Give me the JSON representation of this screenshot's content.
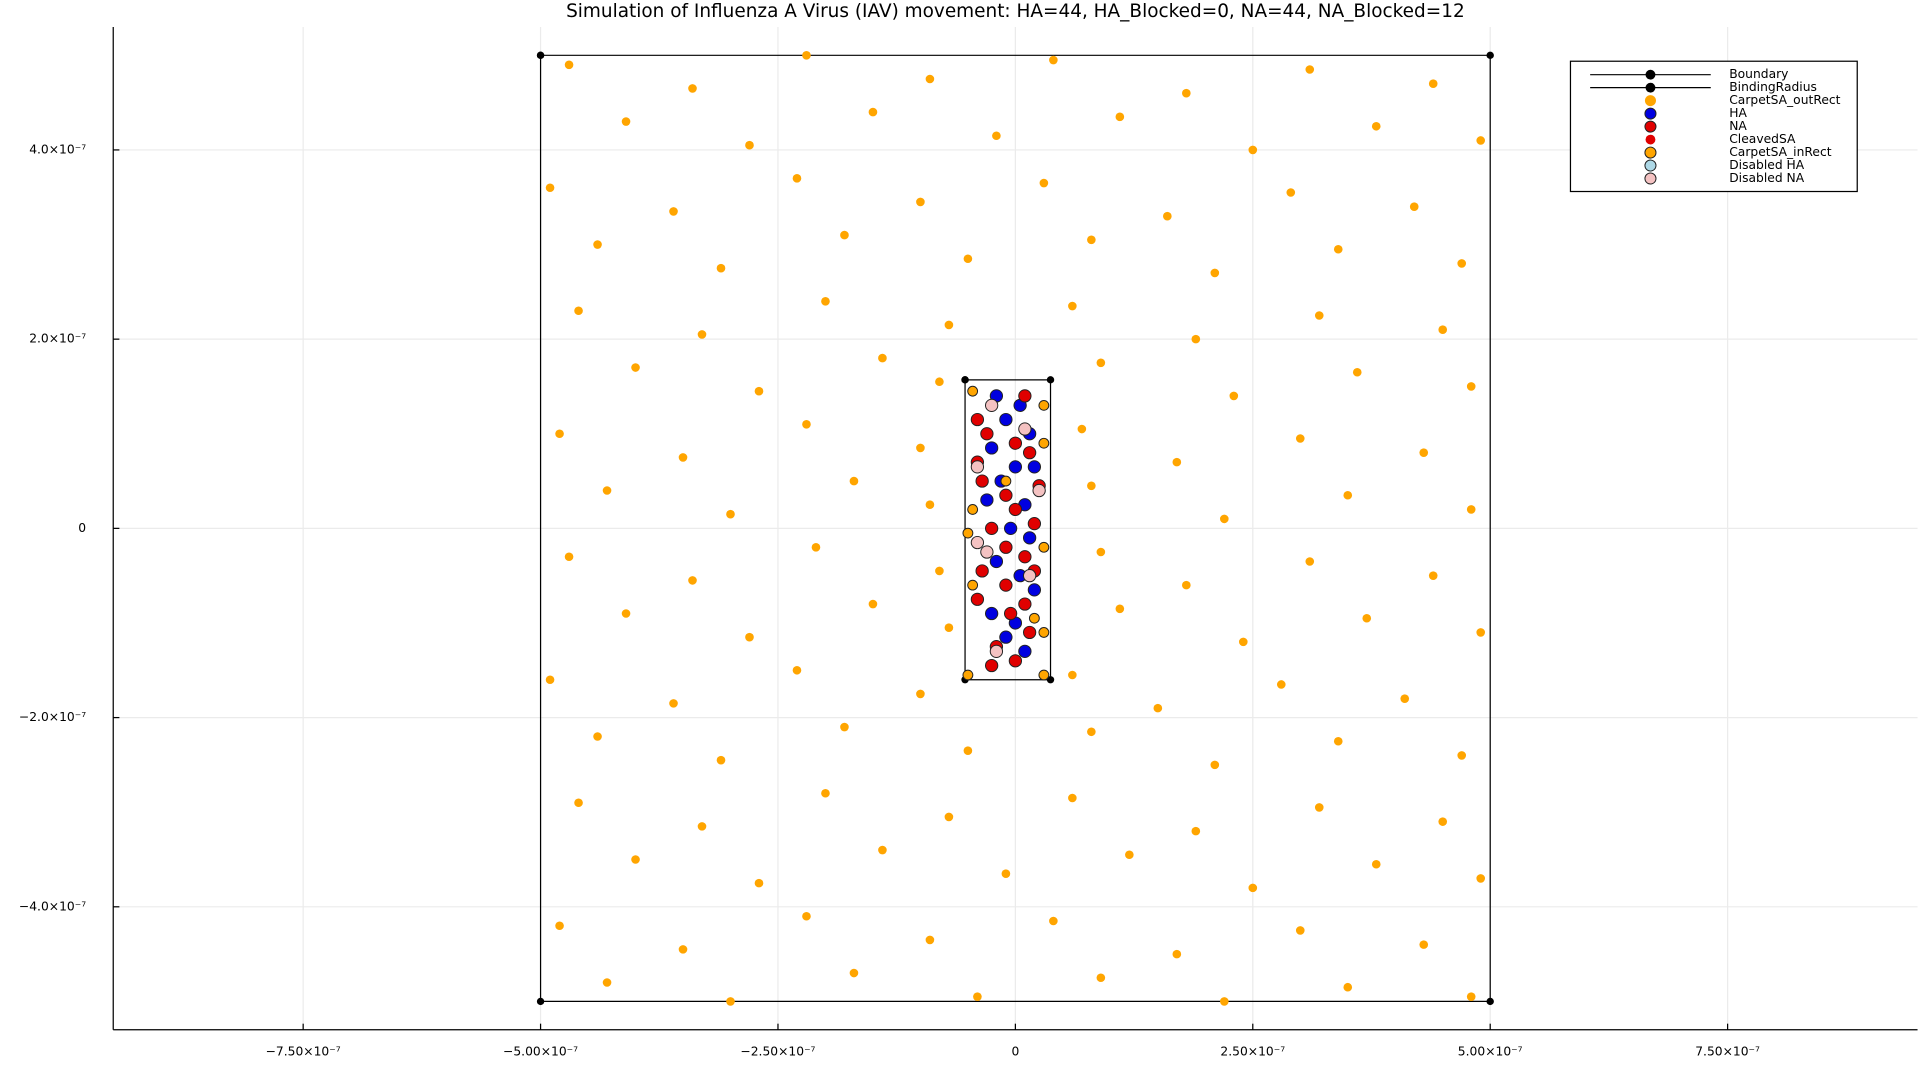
{
  "chart_data": {
    "type": "scatter",
    "title": "Simulation of Influenza A Virus (IAV) movement: HA=44, HA_Blocked=0, NA=44, NA_Blocked=12",
    "xlim": [
      -9.5e-07,
      9.5e-07
    ],
    "ylim": [
      -5.3e-07,
      5.3e-07
    ],
    "xticks": [
      {
        "value": -7.5e-07,
        "label": "−7.50×10⁻⁷"
      },
      {
        "value": -5e-07,
        "label": "−5.00×10⁻⁷"
      },
      {
        "value": -2.5e-07,
        "label": "−2.50×10⁻⁷"
      },
      0,
      {
        "value": 2.5e-07,
        "label": "2.50×10⁻⁷"
      },
      {
        "value": 5e-07,
        "label": "5.00×10⁻⁷"
      },
      {
        "value": 7.5e-07,
        "label": "7.50×10⁻⁷"
      }
    ],
    "yticks": [
      {
        "value": -4e-07,
        "label": "−4.0×10⁻⁷"
      },
      {
        "value": -2e-07,
        "label": "−2.0×10⁻⁷"
      },
      0,
      {
        "value": 2e-07,
        "label": "2.0×10⁻⁷"
      },
      {
        "value": 4e-07,
        "label": "4.0×10⁻⁷"
      }
    ],
    "grid": true,
    "legend": "top-right",
    "series": [
      {
        "name": "Boundary",
        "color": "#000000",
        "mode": "lines+markers",
        "x": [
          -5e-07,
          5e-07,
          5e-07,
          -5e-07,
          -5e-07
        ],
        "y": [
          5e-07,
          5e-07,
          -5e-07,
          -5e-07,
          5e-07
        ]
      },
      {
        "name": "BindingRadius",
        "color": "#000000",
        "mode": "lines+markers",
        "x": [
          -5.3e-08,
          3.7e-08,
          3.7e-08,
          -5.3e-08,
          -5.3e-08
        ],
        "y": [
          1.57e-07,
          1.57e-07,
          -1.6e-07,
          -1.6e-07,
          1.57e-07
        ]
      },
      {
        "name": "CarpetSA_outRect",
        "color": "#ffa500",
        "mode": "markers",
        "x": [
          -4.7e-07,
          -3.4e-07,
          -2.2e-07,
          -9e-08,
          4e-08,
          1.8e-07,
          3.1e-07,
          4.4e-07,
          -4.1e-07,
          -2.8e-07,
          -1.5e-07,
          -2e-08,
          1.1e-07,
          2.5e-07,
          3.8e-07,
          4.9e-07,
          -4.9e-07,
          -3.6e-07,
          -2.3e-07,
          -1e-07,
          3e-08,
          1.6e-07,
          2.9e-07,
          4.2e-07,
          -4.4e-07,
          -3.1e-07,
          -1.8e-07,
          -5e-08,
          8e-08,
          2.1e-07,
          3.4e-07,
          4.7e-07,
          -4.6e-07,
          -3.3e-07,
          -2e-07,
          -7e-08,
          6e-08,
          1.9e-07,
          3.2e-07,
          4.5e-07,
          -4e-07,
          -2.7e-07,
          -1.4e-07,
          -8e-08,
          9e-08,
          2.3e-07,
          3.6e-07,
          4.8e-07,
          -4.8e-07,
          -3.5e-07,
          -2.2e-07,
          -1e-07,
          7e-08,
          1.7e-07,
          3e-07,
          4.3e-07,
          -4.3e-07,
          -3e-07,
          -1.7e-07,
          -9e-08,
          8e-08,
          2.2e-07,
          3.5e-07,
          4.8e-07,
          -4.7e-07,
          -3.4e-07,
          -2.1e-07,
          -8e-08,
          9e-08,
          1.8e-07,
          3.1e-07,
          4.4e-07,
          -4.1e-07,
          -2.8e-07,
          -1.5e-07,
          -7e-08,
          1.1e-07,
          2.4e-07,
          3.7e-07,
          4.9e-07,
          -4.9e-07,
          -3.6e-07,
          -2.3e-07,
          -1e-07,
          6e-08,
          1.5e-07,
          2.8e-07,
          4.1e-07,
          -4.4e-07,
          -3.1e-07,
          -1.8e-07,
          -5e-08,
          8e-08,
          2.1e-07,
          3.4e-07,
          4.7e-07,
          -4.6e-07,
          -3.3e-07,
          -2e-07,
          -7e-08,
          6e-08,
          1.9e-07,
          3.2e-07,
          4.5e-07,
          -4e-07,
          -2.7e-07,
          -1.4e-07,
          -1e-08,
          1.2e-07,
          2.5e-07,
          3.8e-07,
          4.9e-07,
          -4.8e-07,
          -3.5e-07,
          -2.2e-07,
          -9e-08,
          4e-08,
          1.7e-07,
          3e-07,
          4.3e-07,
          -4.3e-07,
          -3e-07,
          -1.7e-07,
          -4e-08,
          9e-08,
          2.2e-07,
          3.5e-07,
          4.8e-07
        ],
        "y": [
          4.9e-07,
          4.65e-07,
          5e-07,
          4.75e-07,
          4.95e-07,
          4.6e-07,
          4.85e-07,
          4.7e-07,
          4.3e-07,
          4.05e-07,
          4.4e-07,
          4.15e-07,
          4.35e-07,
          4e-07,
          4.25e-07,
          4.1e-07,
          3.6e-07,
          3.35e-07,
          3.7e-07,
          3.45e-07,
          3.65e-07,
          3.3e-07,
          3.55e-07,
          3.4e-07,
          3e-07,
          2.75e-07,
          3.1e-07,
          2.85e-07,
          3.05e-07,
          2.7e-07,
          2.95e-07,
          2.8e-07,
          2.3e-07,
          2.05e-07,
          2.4e-07,
          2.15e-07,
          2.35e-07,
          2e-07,
          2.25e-07,
          2.1e-07,
          1.7e-07,
          1.45e-07,
          1.8e-07,
          1.55e-07,
          1.75e-07,
          1.4e-07,
          1.65e-07,
          1.5e-07,
          1e-07,
          7.5e-08,
          1.1e-07,
          8.5e-08,
          1.05e-07,
          7e-08,
          9.5e-08,
          8e-08,
          4e-08,
          1.5e-08,
          5e-08,
          2.5e-08,
          4.5e-08,
          1e-08,
          3.5e-08,
          2e-08,
          -3e-08,
          -5.5e-08,
          -2e-08,
          -4.5e-08,
          -2.5e-08,
          -6e-08,
          -3.5e-08,
          -5e-08,
          -9e-08,
          -1.15e-07,
          -8e-08,
          -1.05e-07,
          -8.5e-08,
          -1.2e-07,
          -9.5e-08,
          -1.1e-07,
          -1.6e-07,
          -1.85e-07,
          -1.5e-07,
          -1.75e-07,
          -1.55e-07,
          -1.9e-07,
          -1.65e-07,
          -1.8e-07,
          -2.2e-07,
          -2.45e-07,
          -2.1e-07,
          -2.35e-07,
          -2.15e-07,
          -2.5e-07,
          -2.25e-07,
          -2.4e-07,
          -2.9e-07,
          -3.15e-07,
          -2.8e-07,
          -3.05e-07,
          -2.85e-07,
          -3.2e-07,
          -2.95e-07,
          -3.1e-07,
          -3.5e-07,
          -3.75e-07,
          -3.4e-07,
          -3.65e-07,
          -3.45e-07,
          -3.8e-07,
          -3.55e-07,
          -3.7e-07,
          -4.2e-07,
          -4.45e-07,
          -4.1e-07,
          -4.35e-07,
          -4.15e-07,
          -4.5e-07,
          -4.25e-07,
          -4.4e-07,
          -4.8e-07,
          -5e-07,
          -4.7e-07,
          -4.95e-07,
          -4.75e-07,
          -5e-07,
          -4.85e-07,
          -4.95e-07
        ]
      },
      {
        "name": "HA",
        "color": "#0000e0",
        "mode": "markers",
        "x": [
          -2e-08,
          5e-09,
          -1e-08,
          1.5e-08,
          -2.5e-08,
          0,
          2e-08,
          -1.5e-08,
          -3e-08,
          1e-08,
          -5e-09,
          1.5e-08,
          -2e-08,
          5e-09,
          2e-08,
          -2.5e-08,
          0,
          -1e-08,
          1e-08
        ],
        "y": [
          1.4e-07,
          1.3e-07,
          1.15e-07,
          1e-07,
          8.5e-08,
          6.5e-08,
          6.5e-08,
          5e-08,
          3e-08,
          2.5e-08,
          0,
          -1e-08,
          -3.5e-08,
          -5e-08,
          -6.5e-08,
          -9e-08,
          -1e-07,
          -1.15e-07,
          -1.3e-07
        ]
      },
      {
        "name": "NA",
        "color": "#e00000",
        "mode": "markers",
        "x": [
          -4e-08,
          1e-08,
          -3e-08,
          0,
          -4e-08,
          1.5e-08,
          -1e-08,
          2.5e-08,
          -3.5e-08,
          0,
          -2.5e-08,
          2e-08,
          -1e-08,
          1e-08,
          -3.5e-08,
          -1e-08,
          1e-08,
          -4e-08,
          -2e-08,
          1.5e-08,
          -2.5e-08,
          0,
          2e-08,
          -5e-09
        ],
        "y": [
          1.15e-07,
          1.4e-07,
          1e-07,
          9e-08,
          7e-08,
          8e-08,
          3.5e-08,
          4.5e-08,
          5e-08,
          2e-08,
          0,
          5e-09,
          -2e-08,
          -3e-08,
          -4.5e-08,
          -6e-08,
          -8e-08,
          -7.5e-08,
          -1.25e-07,
          -1.1e-07,
          -1.45e-07,
          -1.4e-07,
          -4.5e-08,
          -9e-08
        ]
      },
      {
        "name": "CleavedSA",
        "color": "#e00000",
        "mode": "markers",
        "x": [],
        "y": []
      },
      {
        "name": "CarpetSA_inRect",
        "color": "#ffa500",
        "mode": "markers",
        "x": [
          -4.5e-08,
          3e-08,
          -4.5e-08,
          3e-08,
          -5e-08,
          3e-08,
          -5e-08,
          3e-08,
          -1e-08,
          2e-08,
          -4.5e-08,
          3e-08
        ],
        "y": [
          1.45e-07,
          1.3e-07,
          2e-08,
          -2e-08,
          -5e-09,
          -1.1e-07,
          -1.55e-07,
          -1.55e-07,
          5e-08,
          -9.5e-08,
          -6e-08,
          9e-08
        ]
      },
      {
        "name": "Disabled HA",
        "color": "#add8e6",
        "mode": "markers",
        "x": [],
        "y": []
      },
      {
        "name": "Disabled NA",
        "color": "#f4c2c2",
        "mode": "markers",
        "x": [
          -2.5e-08,
          1e-08,
          -4e-08,
          2.5e-08,
          -4e-08,
          1.5e-08,
          -2e-08,
          -3e-08
        ],
        "y": [
          1.3e-07,
          1.05e-07,
          6.5e-08,
          4e-08,
          -1.5e-08,
          -5e-08,
          -1.3e-07,
          -2.5e-08
        ]
      }
    ]
  }
}
